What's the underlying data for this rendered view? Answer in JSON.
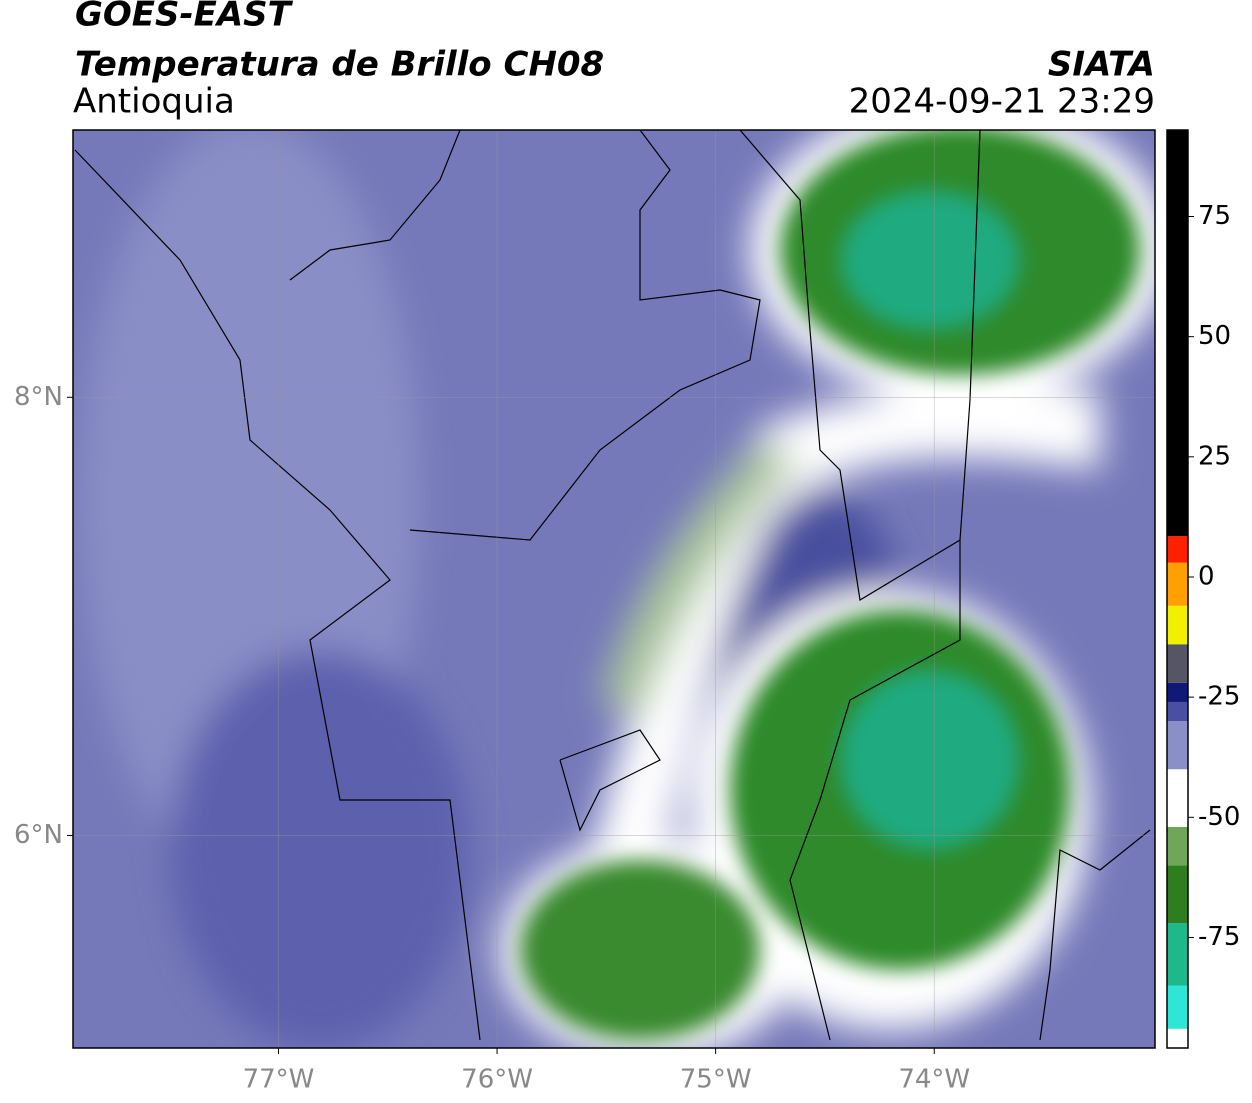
{
  "header": {
    "title": "GOES-EAST",
    "subtitle": "Temperatura de Brillo CH08",
    "region": "Antioquia",
    "source": "SIATA",
    "datetime": "2024-09-21 23:29"
  },
  "map": {
    "xlim": [
      -77.94,
      -72.99
    ],
    "ylim": [
      5.03,
      9.22
    ],
    "xticks": [
      {
        "value": -77,
        "label": "77°W"
      },
      {
        "value": -76,
        "label": "76°W"
      },
      {
        "value": -75,
        "label": "75°W"
      },
      {
        "value": -74,
        "label": "74°W"
      }
    ],
    "yticks": [
      {
        "value": 6,
        "label": "6°N"
      },
      {
        "value": 8,
        "label": "8°N"
      }
    ],
    "grid": true
  },
  "colorbar": {
    "lim": [
      -98,
      93
    ],
    "ticks": [
      -75,
      -50,
      -25,
      0,
      25,
      50,
      75
    ],
    "stops": [
      {
        "value": -98,
        "color": "#ffffff"
      },
      {
        "value": -94,
        "color": "#2ee6d8"
      },
      {
        "value": -85,
        "color": "#1fb88a"
      },
      {
        "value": -72,
        "color": "#2e7d1e"
      },
      {
        "value": -60,
        "color": "#6fa65a"
      },
      {
        "value": -52,
        "color": "#ffffff"
      },
      {
        "value": -40,
        "color": "#8a8fc8"
      },
      {
        "value": -30,
        "color": "#4a4fa3"
      },
      {
        "value": -26,
        "color": "#101878"
      },
      {
        "value": -22,
        "color": "#555566"
      },
      {
        "value": -14,
        "color": "#f0f000"
      },
      {
        "value": -6,
        "color": "#ffa000"
      },
      {
        "value": 3,
        "color": "#ff2000"
      },
      {
        "value": 8.5,
        "color": "#000000"
      }
    ]
  }
}
